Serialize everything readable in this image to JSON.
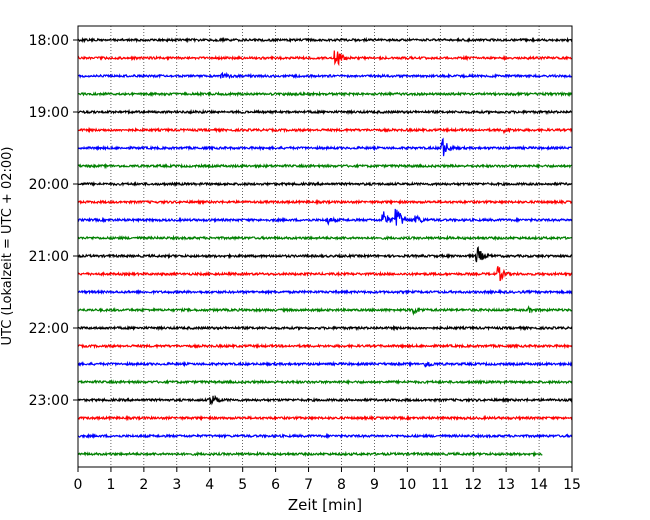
{
  "chart_data": {
    "type": "line",
    "xlabel": "Zeit  [min]",
    "ylabel": "UTC (Lokalzeit = UTC + 02:00)",
    "xlim": [
      0,
      15
    ],
    "x_ticks": [
      "0",
      "1",
      "2",
      "3",
      "4",
      "5",
      "6",
      "7",
      "8",
      "9",
      "10",
      "11",
      "12",
      "13",
      "14",
      "15"
    ],
    "y_ticks": [
      "18:00",
      "19:00",
      "20:00",
      "21:00",
      "22:00",
      "23:00"
    ],
    "y_tick_rows": [
      0,
      4,
      8,
      12,
      16,
      20
    ],
    "grid": "vertical dotted",
    "trace_colors": [
      "#000000",
      "#ff0000",
      "#0000ff",
      "#008000"
    ],
    "traces_per_hour": 4,
    "minutes_per_trace": 15,
    "rows": [
      {
        "start": "18:00",
        "color": "#000000",
        "events": []
      },
      {
        "start": "18:15",
        "color": "#ff0000",
        "events": [
          {
            "t": 7.85,
            "amp": 9
          }
        ]
      },
      {
        "start": "18:30",
        "color": "#0000ff",
        "events": [
          {
            "t": 4.4,
            "amp": 3
          }
        ]
      },
      {
        "start": "18:45",
        "color": "#008000",
        "events": []
      },
      {
        "start": "19:00",
        "color": "#000000",
        "events": []
      },
      {
        "start": "19:15",
        "color": "#ff0000",
        "events": [
          {
            "t": 13.0,
            "amp": 2
          }
        ]
      },
      {
        "start": "19:30",
        "color": "#0000ff",
        "events": [
          {
            "t": 11.1,
            "amp": 9
          }
        ]
      },
      {
        "start": "19:45",
        "color": "#008000",
        "events": []
      },
      {
        "start": "20:00",
        "color": "#000000",
        "events": []
      },
      {
        "start": "20:15",
        "color": "#ff0000",
        "events": []
      },
      {
        "start": "20:30",
        "color": "#0000ff",
        "events": [
          {
            "t": 9.3,
            "amp": 8
          },
          {
            "t": 9.7,
            "amp": 12
          },
          {
            "t": 10.3,
            "amp": 4
          },
          {
            "t": 7.6,
            "amp": 3
          }
        ]
      },
      {
        "start": "20:45",
        "color": "#008000",
        "events": []
      },
      {
        "start": "21:00",
        "color": "#000000",
        "events": [
          {
            "t": 12.15,
            "amp": 8
          }
        ]
      },
      {
        "start": "21:15",
        "color": "#ff0000",
        "events": [
          {
            "t": 12.8,
            "amp": 7
          }
        ]
      },
      {
        "start": "21:30",
        "color": "#0000ff",
        "events": []
      },
      {
        "start": "21:45",
        "color": "#008000",
        "events": [
          {
            "t": 10.2,
            "amp": 4
          },
          {
            "t": 13.7,
            "amp": 2
          }
        ]
      },
      {
        "start": "22:00",
        "color": "#000000",
        "events": []
      },
      {
        "start": "22:15",
        "color": "#ff0000",
        "events": []
      },
      {
        "start": "22:30",
        "color": "#0000ff",
        "events": [
          {
            "t": 10.6,
            "amp": 3
          }
        ]
      },
      {
        "start": "22:45",
        "color": "#008000",
        "events": []
      },
      {
        "start": "23:00",
        "color": "#000000",
        "events": [
          {
            "t": 4.05,
            "amp": 7
          }
        ]
      },
      {
        "start": "23:15",
        "color": "#ff0000",
        "events": []
      },
      {
        "start": "23:30",
        "color": "#0000ff",
        "events": []
      },
      {
        "start": "23:45",
        "color": "#008000",
        "events": [],
        "end": 14.1
      }
    ]
  }
}
